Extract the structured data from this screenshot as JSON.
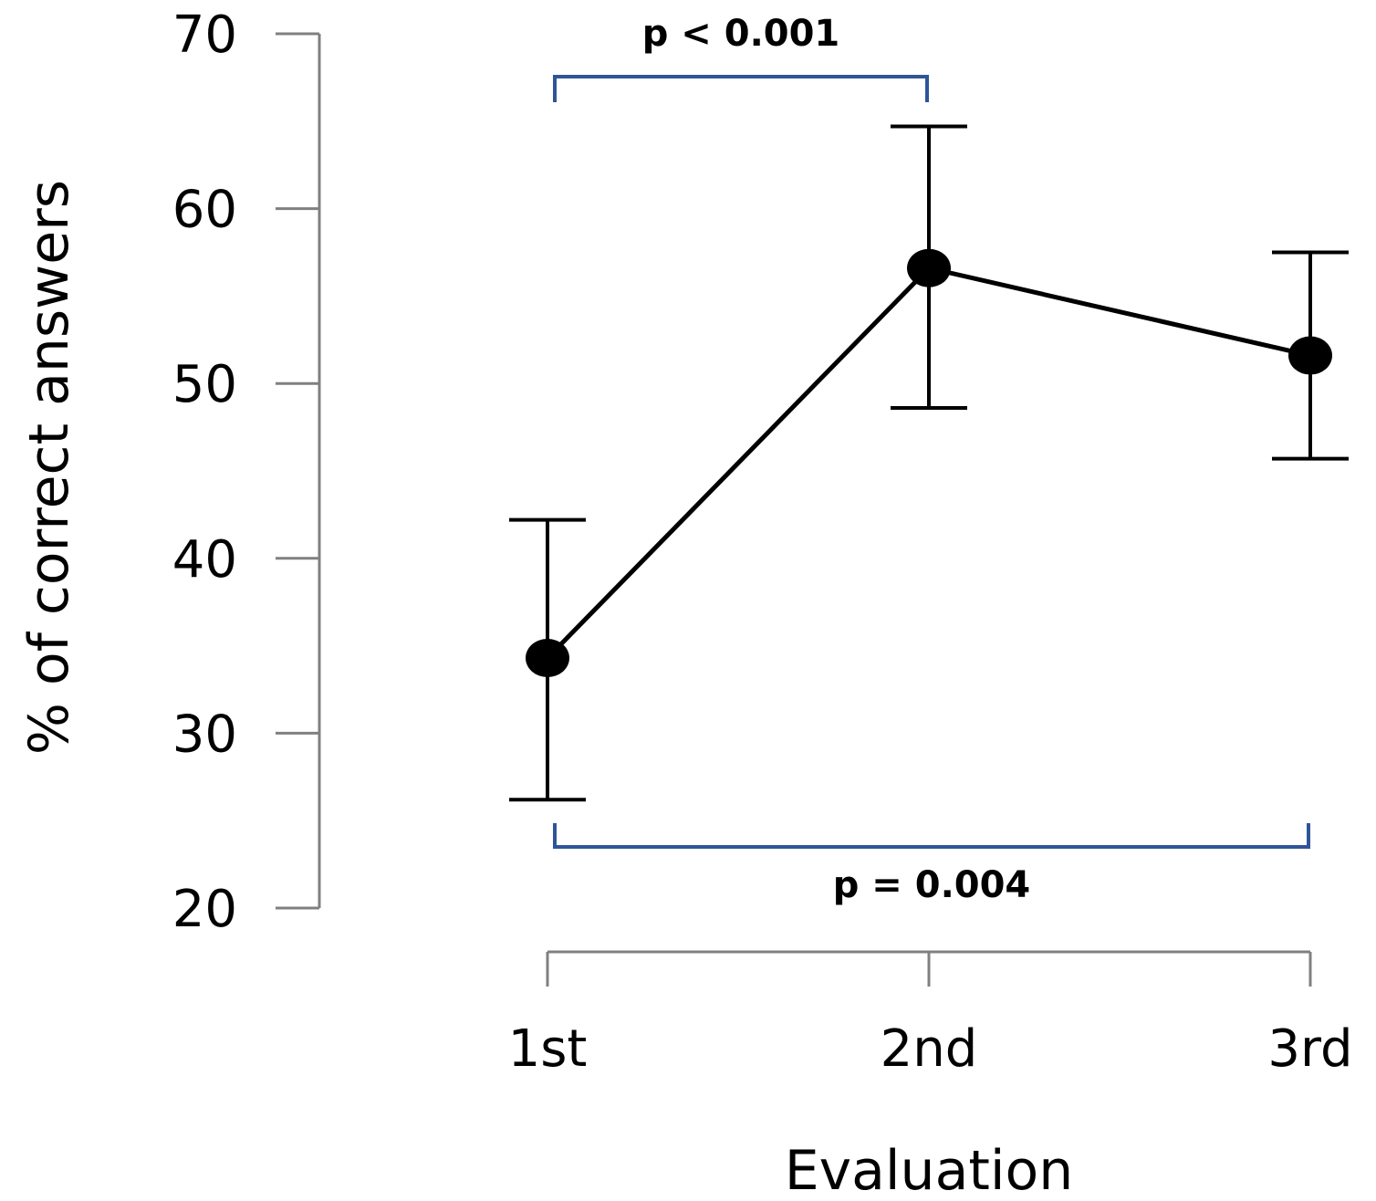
{
  "chart_data": {
    "type": "line",
    "categories": [
      "1st",
      "2nd",
      "3rd"
    ],
    "series": [
      {
        "values": [
          34.3,
          56.6,
          51.6
        ],
        "error_low": [
          26.2,
          48.6,
          45.7
        ],
        "error_high": [
          42.2,
          64.7,
          57.5
        ]
      }
    ],
    "xlabel": "Evaluation",
    "ylabel": "% of correct answers",
    "ylim": [
      20,
      70
    ],
    "yticks": [
      20,
      30,
      40,
      50,
      60,
      70
    ],
    "grid": false,
    "annotations": [
      {
        "label": "p < 0.001",
        "from": "1st",
        "to": "2nd",
        "position": "top",
        "color": "#2f5597"
      },
      {
        "label": "p = 0.004",
        "from": "1st",
        "to": "3rd",
        "position": "bottom",
        "color": "#2f5597"
      }
    ],
    "colors": {
      "line": "#000000",
      "axis": "#808080",
      "bracket": "#2f5597"
    }
  }
}
